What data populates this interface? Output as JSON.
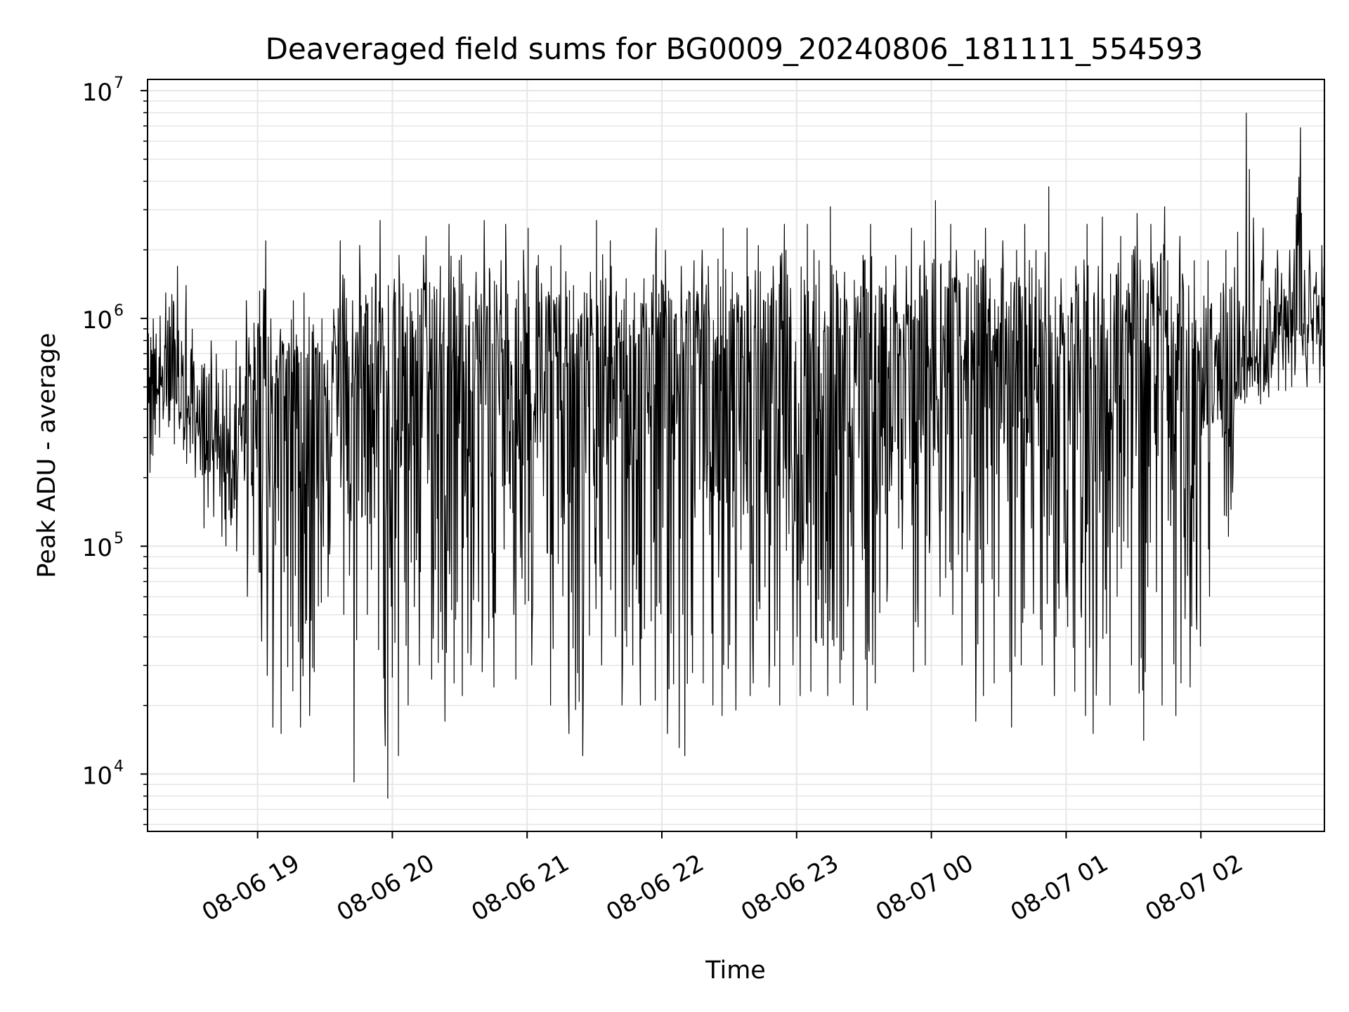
{
  "chart_data": {
    "type": "line",
    "title": "Deaveraged field sums for BG0009_20240806_181111_554593",
    "xlabel": "Time",
    "ylabel": "Peak ADU - average",
    "yscale": "log",
    "ylim": [
      5600,
      11200000
    ],
    "xlim": [
      "2024-08-06 18:11",
      "2024-08-07 02:55"
    ],
    "grid": true,
    "line_color": "#000000",
    "grid_color": "#e6e6e6",
    "x_ticks": [
      {
        "value": "2024-08-06 19:00",
        "label": "08-06 19"
      },
      {
        "value": "2024-08-06 20:00",
        "label": "08-06 20"
      },
      {
        "value": "2024-08-06 21:00",
        "label": "08-06 21"
      },
      {
        "value": "2024-08-06 22:00",
        "label": "08-06 22"
      },
      {
        "value": "2024-08-06 23:00",
        "label": "08-06 23"
      },
      {
        "value": "2024-08-07 00:00",
        "label": "08-07 00"
      },
      {
        "value": "2024-08-07 01:00",
        "label": "08-07 01"
      },
      {
        "value": "2024-08-07 02:00",
        "label": "08-07 02"
      }
    ],
    "y_ticks": [
      {
        "value": 10000,
        "base": "10",
        "exp": "4"
      },
      {
        "value": 100000,
        "base": "10",
        "exp": "5"
      },
      {
        "value": 1000000,
        "base": "10",
        "exp": "6"
      },
      {
        "value": 10000000,
        "base": "10",
        "exp": "7"
      }
    ],
    "series": [
      {
        "x": [
          "2024-08-06 18:11",
          "2024-08-06 18:15",
          "2024-08-06 18:20",
          "2024-08-06 18:25",
          "2024-08-06 18:30",
          "2024-08-06 18:35",
          "2024-08-06 18:40",
          "2024-08-06 18:45",
          "2024-08-06 18:50",
          "2024-08-06 18:55",
          "2024-08-06 19:00",
          "2024-08-06 19:05",
          "2024-08-06 19:10",
          "2024-08-06 19:15",
          "2024-08-06 19:20",
          "2024-08-06 19:25",
          "2024-08-06 19:30",
          "2024-08-06 19:35",
          "2024-08-06 19:40",
          "2024-08-06 19:45",
          "2024-08-06 19:50",
          "2024-08-06 19:55",
          "2024-08-06 20:00",
          "2024-08-06 20:05",
          "2024-08-06 20:10",
          "2024-08-06 20:15",
          "2024-08-06 20:20",
          "2024-08-06 20:25",
          "2024-08-06 20:30",
          "2024-08-06 20:35",
          "2024-08-06 20:40",
          "2024-08-06 20:45",
          "2024-08-06 20:50",
          "2024-08-06 20:55",
          "2024-08-06 21:00",
          "2024-08-06 21:05",
          "2024-08-06 21:10",
          "2024-08-06 21:15",
          "2024-08-06 21:20",
          "2024-08-06 21:25",
          "2024-08-06 21:30",
          "2024-08-06 21:35",
          "2024-08-06 21:40",
          "2024-08-06 21:45",
          "2024-08-06 21:50",
          "2024-08-06 21:55",
          "2024-08-06 22:00",
          "2024-08-06 22:05",
          "2024-08-06 22:10",
          "2024-08-06 22:15",
          "2024-08-06 22:20",
          "2024-08-06 22:25",
          "2024-08-06 22:30",
          "2024-08-06 22:35",
          "2024-08-06 22:40",
          "2024-08-06 22:45",
          "2024-08-06 22:50",
          "2024-08-06 22:55",
          "2024-08-06 23:00",
          "2024-08-06 23:05",
          "2024-08-06 23:10",
          "2024-08-06 23:15",
          "2024-08-06 23:20",
          "2024-08-06 23:25",
          "2024-08-06 23:30",
          "2024-08-06 23:35",
          "2024-08-06 23:40",
          "2024-08-06 23:45",
          "2024-08-06 23:50",
          "2024-08-06 23:55",
          "2024-08-07 00:00",
          "2024-08-07 00:05",
          "2024-08-07 00:10",
          "2024-08-07 00:15",
          "2024-08-07 00:20",
          "2024-08-07 00:25",
          "2024-08-07 00:30",
          "2024-08-07 00:35",
          "2024-08-07 00:40",
          "2024-08-07 00:45",
          "2024-08-07 00:50",
          "2024-08-07 00:55",
          "2024-08-07 01:00",
          "2024-08-07 01:05",
          "2024-08-07 01:10",
          "2024-08-07 01:15",
          "2024-08-07 01:20",
          "2024-08-07 01:25",
          "2024-08-07 01:30",
          "2024-08-07 01:35",
          "2024-08-07 01:40",
          "2024-08-07 01:45",
          "2024-08-07 01:50",
          "2024-08-07 01:55",
          "2024-08-07 02:00",
          "2024-08-07 02:05",
          "2024-08-07 02:10",
          "2024-08-07 02:15",
          "2024-08-07 02:20",
          "2024-08-07 02:25",
          "2024-08-07 02:30",
          "2024-08-07 02:35",
          "2024-08-07 02:40",
          "2024-08-07 02:45",
          "2024-08-07 02:50",
          "2024-08-07 02:55"
        ],
        "low": [
          210000,
          300000,
          280000,
          230000,
          200000,
          120000,
          110000,
          100000,
          95000,
          60000,
          27000,
          16000,
          15000,
          16000,
          18000,
          28000,
          60000,
          50000,
          9200,
          50000,
          35000,
          7800,
          12000,
          20000,
          30000,
          26000,
          17000,
          25000,
          22000,
          30000,
          28000,
          24000,
          50000,
          26000,
          30000,
          22000,
          20000,
          15000,
          12000,
          22000,
          30000,
          40000,
          20000,
          30000,
          20000,
          21000,
          15000,
          13000,
          12000,
          25000,
          20000,
          18000,
          19000,
          22000,
          25000,
          24000,
          20000,
          30000,
          22000,
          23000,
          22000,
          25000,
          21000,
          20000,
          19000,
          25000,
          22000,
          20000,
          28000,
          30000,
          60000,
          50000,
          30000,
          17000,
          22000,
          25000,
          60000,
          16000,
          30000,
          30000,
          22000,
          40000,
          23000,
          18000,
          15000,
          20000,
          60000,
          30000,
          14000,
          28000,
          20000,
          18000,
          25000,
          24000,
          60000,
          300000,
          110000,
          400000,
          450000,
          420000,
          450000,
          480000,
          500000,
          500000,
          520000,
          520000
        ],
        "high": [
          1000000,
          1300000,
          1700000,
          1400000,
          900000,
          800000,
          700000,
          600000,
          800000,
          1200000,
          2200000,
          1000000,
          900000,
          1200000,
          1300000,
          1000000,
          1100000,
          2200000,
          1200000,
          2100000,
          2700000,
          1400000,
          1900000,
          1300000,
          1900000,
          2300000,
          1700000,
          2600000,
          1900000,
          1600000,
          2700000,
          1800000,
          2600000,
          2000000,
          2500000,
          1900000,
          1700000,
          2100000,
          1400000,
          1600000,
          2700000,
          2200000,
          1500000,
          1300000,
          1500000,
          2500000,
          2000000,
          1700000,
          1800000,
          2000000,
          1700000,
          2500000,
          1600000,
          2500000,
          2100000,
          1700000,
          2600000,
          2000000,
          2600000,
          2000000,
          1800000,
          3100000,
          1600000,
          1900000,
          2600000,
          1700000,
          1900000,
          1700000,
          2500000,
          2200000,
          3300000,
          2600000,
          2000000,
          2000000,
          2500000,
          1500000,
          2200000,
          2000000,
          2600000,
          2000000,
          3800000,
          1500000,
          1700000,
          2600000,
          1700000,
          2800000,
          2300000,
          1900000,
          2900000,
          2600000,
          3100000,
          1800000,
          2300000,
          1800000,
          1800000,
          1300000,
          2000000,
          2400000,
          8000000,
          2500000,
          2000000,
          2000000,
          6900000,
          2000000,
          2100000,
          1500000
        ],
        "typical": [
          600000,
          500000,
          550000,
          400000,
          350000,
          300000,
          320000,
          280000,
          350000,
          450000,
          500000,
          550000,
          600000,
          600000,
          550000,
          600000,
          650000,
          600000,
          550000,
          600000,
          650000,
          650000,
          650000,
          600000,
          650000,
          650000,
          600000,
          650000,
          650000,
          650000,
          650000,
          650000,
          650000,
          650000,
          650000,
          650000,
          650000,
          650000,
          650000,
          650000,
          650000,
          650000,
          650000,
          650000,
          650000,
          650000,
          650000,
          650000,
          650000,
          650000,
          650000,
          650000,
          650000,
          650000,
          650000,
          650000,
          650000,
          650000,
          650000,
          650000,
          650000,
          650000,
          650000,
          650000,
          650000,
          650000,
          650000,
          650000,
          650000,
          650000,
          650000,
          650000,
          650000,
          650000,
          650000,
          650000,
          650000,
          650000,
          650000,
          650000,
          650000,
          650000,
          650000,
          650000,
          650000,
          650000,
          650000,
          650000,
          650000,
          650000,
          650000,
          650000,
          650000,
          650000,
          650000,
          450000,
          450000,
          500000,
          700000,
          800000,
          850000,
          900000,
          900000,
          950000,
          950000,
          900000
        ]
      }
    ]
  }
}
